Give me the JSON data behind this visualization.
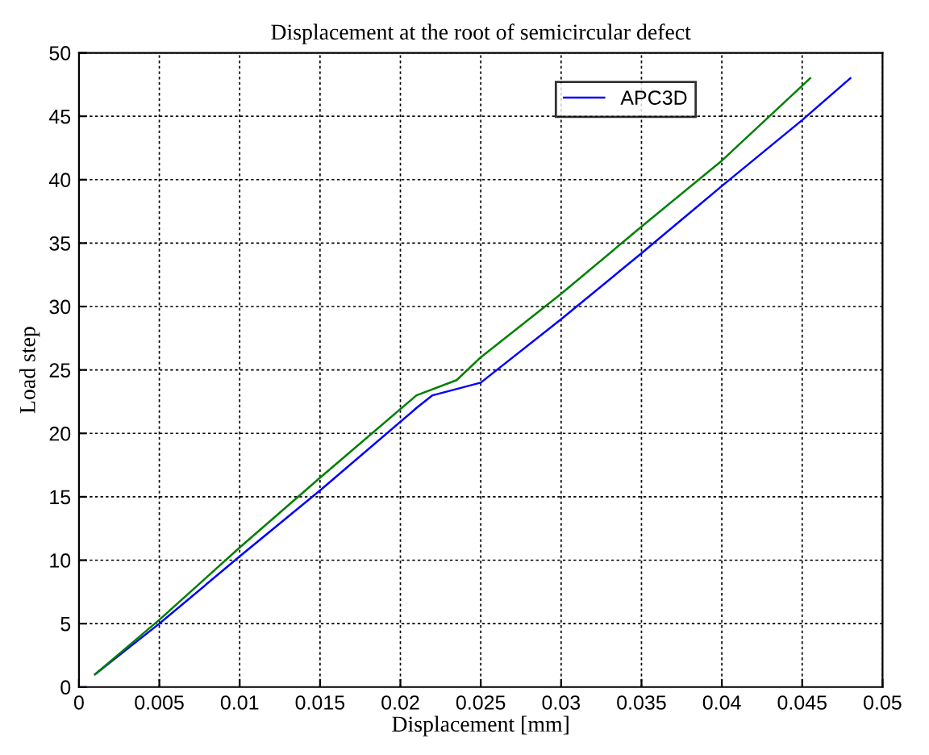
{
  "chart_data": {
    "type": "line",
    "title": "Displacement at the root of semicircular defect",
    "xlabel": "Displacement [mm]",
    "ylabel": "Load step",
    "series": [
      {
        "name": "APC3D",
        "color": "#0000ff",
        "x": [
          0.001,
          0.005,
          0.01,
          0.015,
          0.021,
          0.022,
          0.025,
          0.03,
          0.035,
          0.04,
          0.045,
          0.048
        ],
        "values": [
          1,
          5,
          10.3,
          15.5,
          22,
          23,
          24,
          29,
          34.2,
          39.5,
          44.7,
          48
        ]
      },
      {
        "color": "#008000",
        "x": [
          0.001,
          0.005,
          0.01,
          0.015,
          0.021,
          0.0235,
          0.025,
          0.03,
          0.035,
          0.04,
          0.0455
        ],
        "values": [
          1,
          5.3,
          11,
          16.5,
          23,
          24.2,
          26,
          31,
          36.3,
          41.5,
          48
        ]
      }
    ],
    "xlim": [
      0,
      0.05
    ],
    "xticks": [
      0,
      0.005,
      0.01,
      0.015,
      0.02,
      0.025,
      0.03,
      0.035,
      0.04,
      0.045,
      0.05
    ],
    "ylim": [
      0,
      50
    ],
    "yticks": [
      0,
      5,
      10,
      15,
      20,
      25,
      30,
      35,
      40,
      45,
      50
    ],
    "grid": true,
    "legend": "top right",
    "line_style": "solid",
    "marker": "none"
  }
}
